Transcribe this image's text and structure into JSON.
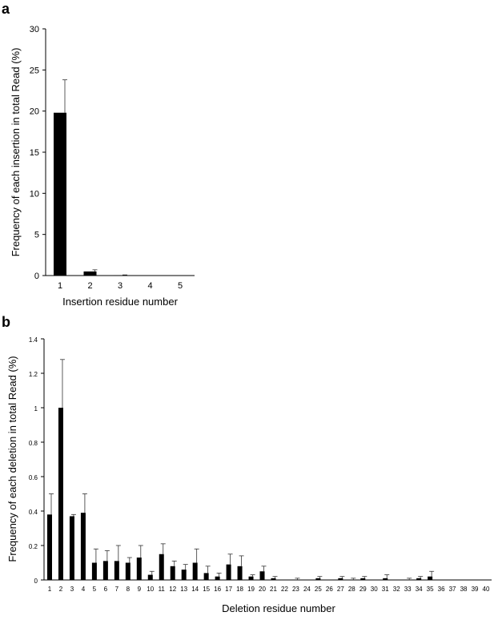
{
  "chart_data": [
    {
      "panel": "a",
      "type": "bar",
      "xlabel": "Insertion residue number",
      "ylabel": "Frequency of each insertion in total Read (%)",
      "ylim": [
        0,
        30
      ],
      "yticks": [
        "0",
        "5",
        "10",
        "15",
        "20",
        "25",
        "30"
      ],
      "categories": [
        "1",
        "2",
        "3",
        "4",
        "5"
      ],
      "values": [
        19.8,
        0.5,
        0.05,
        0.0,
        0.0
      ],
      "errors": [
        4.0,
        0.2,
        0.03,
        0.0,
        0.0
      ],
      "bar_color": "#000000",
      "grid": false
    },
    {
      "panel": "b",
      "type": "bar",
      "xlabel": "Deletion residue number",
      "ylabel": "Frequency of each deletion in total Read (%)",
      "ylim": [
        0,
        1.4
      ],
      "yticks": [
        "0",
        "0.2",
        "0.4",
        "0.6",
        "0.8",
        "1",
        "1.2",
        "1.4"
      ],
      "categories": [
        "1",
        "2",
        "3",
        "4",
        "5",
        "6",
        "7",
        "8",
        "9",
        "10",
        "11",
        "12",
        "13",
        "14",
        "15",
        "16",
        "17",
        "18",
        "19",
        "20",
        "21",
        "22",
        "23",
        "24",
        "25",
        "26",
        "27",
        "28",
        "29",
        "30",
        "31",
        "32",
        "33",
        "34",
        "35",
        "36",
        "37",
        "38",
        "39",
        "40"
      ],
      "values": [
        0.38,
        1.0,
        0.37,
        0.39,
        0.1,
        0.11,
        0.11,
        0.1,
        0.13,
        0.03,
        0.15,
        0.08,
        0.06,
        0.1,
        0.04,
        0.02,
        0.09,
        0.08,
        0.02,
        0.05,
        0.01,
        0.0,
        0.0,
        0.0,
        0.01,
        0.0,
        0.01,
        0.0,
        0.01,
        0.0,
        0.01,
        0.0,
        0.0,
        0.01,
        0.02,
        0.0,
        0.0,
        0.0,
        0.0,
        0.0
      ],
      "errors": [
        0.12,
        0.28,
        0.01,
        0.11,
        0.08,
        0.06,
        0.09,
        0.03,
        0.07,
        0.02,
        0.06,
        0.03,
        0.03,
        0.08,
        0.04,
        0.02,
        0.06,
        0.06,
        0.01,
        0.03,
        0.01,
        0.0,
        0.01,
        0.0,
        0.01,
        0.0,
        0.01,
        0.01,
        0.01,
        0.0,
        0.02,
        0.0,
        0.01,
        0.01,
        0.03,
        0.0,
        0.0,
        0.0,
        0.0,
        0.0
      ],
      "bar_color": "#000000",
      "grid": false
    }
  ],
  "panel_labels": {
    "a": "a",
    "b": "b"
  }
}
